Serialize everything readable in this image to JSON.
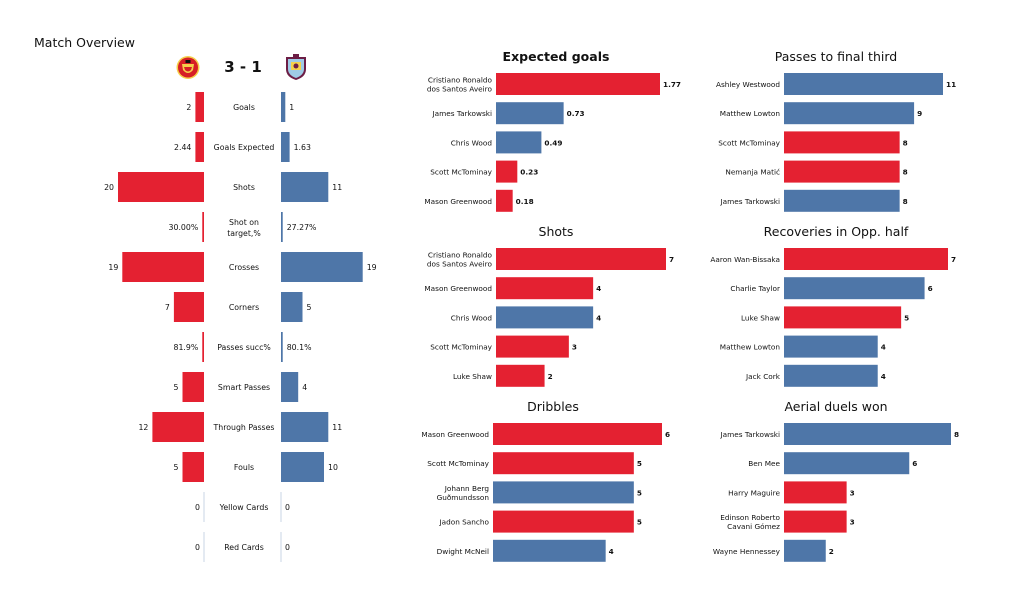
{
  "page_title": "Match Overview",
  "score": "3 - 1",
  "logos": [
    {
      "team": "home",
      "icon": "manchester-united-crest-icon",
      "color": "#d61f26"
    },
    {
      "team": "away",
      "icon": "burnley-crest-icon",
      "color": "#6c1d45"
    }
  ],
  "colors": {
    "home": "#e42131",
    "away": "#4e76a8"
  },
  "chart_data": [
    {
      "type": "bar",
      "title": "",
      "orientation": "diverging-horizontal",
      "categories": [
        "Goals",
        "Goals Expected",
        "Shots",
        "Shot on target,%",
        "Crosses",
        "Corners",
        "Passes succ%",
        "Smart Passes",
        "Through Passes",
        "Fouls",
        "Yellow Cards",
        "Red Cards"
      ],
      "series": [
        {
          "values": [
            2,
            2.44,
            20,
            30.0,
            19,
            7,
            81.9,
            5,
            12,
            5,
            0,
            0
          ],
          "labels": [
            "2",
            "2.44",
            "20",
            "30.00%",
            "19",
            "7",
            "81.9%",
            "5",
            "12",
            "5",
            "0",
            "0"
          ],
          "color": "#e42131"
        },
        {
          "values": [
            1,
            1.63,
            11,
            27.27,
            19,
            5,
            80.1,
            4,
            11,
            10,
            0,
            0
          ],
          "labels": [
            "1",
            "1.63",
            "11",
            "27.27%",
            "19",
            "5",
            "80.1%",
            "4",
            "11",
            "10",
            "0",
            "0"
          ],
          "color": "#4e76a8"
        }
      ],
      "bar_fraction": [
        0.1,
        0.1,
        1.0,
        0.02,
        0.95,
        0.35,
        0.02,
        0.25,
        0.6,
        0.25,
        0,
        0,
        0.05,
        0.1,
        0.55,
        0.02,
        0.95,
        0.25,
        0.02,
        0.2,
        0.55,
        0.5,
        0,
        0
      ]
    },
    {
      "type": "bar",
      "orientation": "horizontal",
      "title": "Expected goals",
      "title_bold": true,
      "categories": [
        "Cristiano Ronaldo\ndos Santos Aveiro",
        "James  Tarkowski",
        "Chris Wood",
        "Scott McTominay",
        "Mason Greenwood"
      ],
      "values": [
        1.77,
        0.73,
        0.49,
        0.23,
        0.18
      ],
      "value_labels": [
        "1.77",
        "0.73",
        "0.49",
        "0.23",
        "0.18"
      ],
      "team": [
        "home",
        "away",
        "away",
        "home",
        "home"
      ],
      "xlim": [
        0,
        1.77
      ]
    },
    {
      "type": "bar",
      "orientation": "horizontal",
      "title": "Passes to final third",
      "categories": [
        "Ashley Westwood",
        "Matthew Lowton",
        "Scott McTominay",
        "Nemanja Matić",
        "James  Tarkowski"
      ],
      "values": [
        11,
        9,
        8,
        8,
        8
      ],
      "value_labels": [
        "11",
        "9",
        "8",
        "8",
        "8"
      ],
      "team": [
        "away",
        "away",
        "home",
        "home",
        "away"
      ],
      "xlim": [
        0,
        11
      ]
    },
    {
      "type": "bar",
      "orientation": "horizontal",
      "title": "Shots",
      "categories": [
        "Cristiano Ronaldo\ndos Santos Aveiro",
        "Mason Greenwood",
        "Chris Wood",
        "Scott McTominay",
        "Luke Shaw"
      ],
      "values": [
        7,
        4,
        4,
        3,
        2
      ],
      "value_labels": [
        "7",
        "4",
        "4",
        "3",
        "2"
      ],
      "team": [
        "home",
        "home",
        "away",
        "home",
        "home"
      ],
      "xlim": [
        0,
        7
      ]
    },
    {
      "type": "bar",
      "orientation": "horizontal",
      "title": "Recoveries in Opp. half",
      "categories": [
        "Aaron Wan-Bissaka",
        "Charlie Taylor",
        "Luke Shaw",
        "Matthew Lowton",
        "Jack Cork"
      ],
      "values": [
        7,
        6,
        5,
        4,
        4
      ],
      "value_labels": [
        "7",
        "6",
        "5",
        "4",
        "4"
      ],
      "team": [
        "home",
        "away",
        "home",
        "away",
        "away"
      ],
      "xlim": [
        0,
        7
      ]
    },
    {
      "type": "bar",
      "orientation": "horizontal",
      "title": "Dribbles",
      "categories": [
        "Mason Greenwood",
        "Scott McTominay",
        "Johann  Berg\nGuðmundsson",
        "Jadon Sancho",
        "Dwight McNeil"
      ],
      "values": [
        6,
        5,
        5,
        5,
        4
      ],
      "value_labels": [
        "6",
        "5",
        "5",
        "5",
        "4"
      ],
      "team": [
        "home",
        "home",
        "away",
        "home",
        "away"
      ],
      "xlim": [
        0,
        6
      ]
    },
    {
      "type": "bar",
      "orientation": "horizontal",
      "title": "Aerial duels won",
      "categories": [
        "James  Tarkowski",
        "Ben Mee",
        "Harry  Maguire",
        "Edinson Roberto\nCavani Gómez",
        "Wayne  Hennessey"
      ],
      "values": [
        8,
        6,
        3,
        3,
        2
      ],
      "value_labels": [
        "8",
        "6",
        "3",
        "3",
        "2"
      ],
      "team": [
        "away",
        "away",
        "home",
        "home",
        "away"
      ],
      "xlim": [
        0,
        8
      ]
    }
  ]
}
